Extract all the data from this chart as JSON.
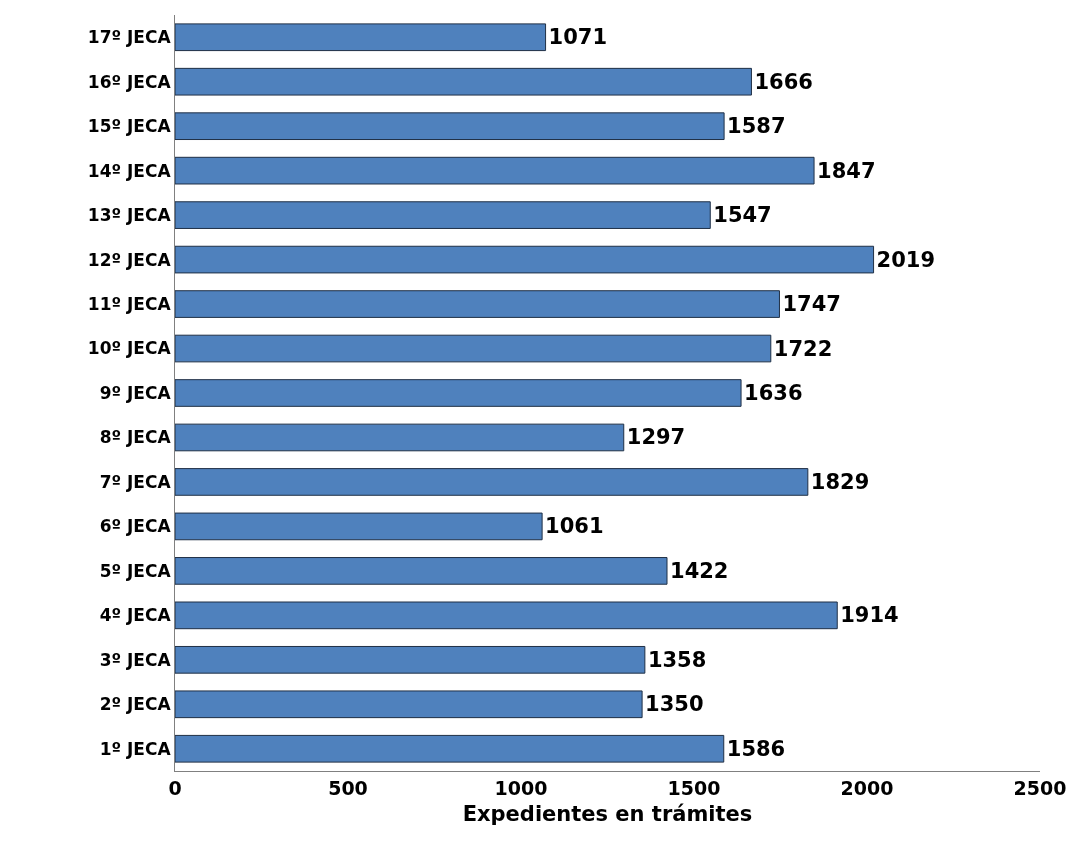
{
  "chart_data": {
    "type": "bar",
    "orientation": "horizontal",
    "xlabel": "Expedientes en trámites",
    "categories": [
      "17º JECA",
      "16º JECA",
      "15º JECA",
      "14º JECA",
      "13º JECA",
      "12º JECA",
      "11º JECA",
      "10º JECA",
      "9º JECA",
      "8º JECA",
      "7º JECA",
      "6º JECA",
      "5º JECA",
      "4º JECA",
      "3º JECA",
      "2º JECA",
      "1º JECA"
    ],
    "values": [
      1071,
      1666,
      1587,
      1847,
      1547,
      2019,
      1747,
      1722,
      1636,
      1297,
      1829,
      1061,
      1422,
      1914,
      1358,
      1350,
      1586
    ],
    "color": "#4f81bd",
    "xlim": [
      0,
      2500
    ],
    "xticks": [
      0,
      500,
      1000,
      1500,
      2000,
      2500
    ],
    "data_labels": true
  }
}
